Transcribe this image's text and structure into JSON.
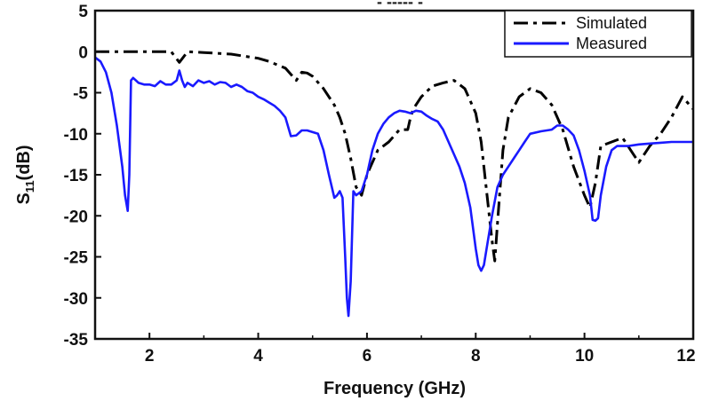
{
  "chart_data": {
    "type": "line",
    "title": "",
    "top_text_fragment": "- ----- -",
    "xlabel": "Frequency (GHz)",
    "ylabel": {
      "main": "S",
      "subscript": "11",
      "suffix": "(dB)"
    },
    "xlim": [
      1,
      12
    ],
    "ylim": [
      -35,
      5
    ],
    "x_ticks": [
      {
        "value": 2,
        "label": "2"
      },
      {
        "value": 4,
        "label": "4"
      },
      {
        "value": 6,
        "label": "6"
      },
      {
        "value": 8,
        "label": "8"
      },
      {
        "value": 10,
        "label": "10"
      },
      {
        "value": 12,
        "label": "12"
      }
    ],
    "y_ticks": [
      {
        "value": 5,
        "label": "5"
      },
      {
        "value": 0,
        "label": "0"
      },
      {
        "value": -5,
        "label": "-5"
      },
      {
        "value": -10,
        "label": "-10"
      },
      {
        "value": -15,
        "label": "-15"
      },
      {
        "value": -20,
        "label": "-20"
      },
      {
        "value": -25,
        "label": "-25"
      },
      {
        "value": -30,
        "label": "-30"
      },
      {
        "value": -35,
        "label": "-35"
      }
    ],
    "grid": false,
    "legend_position": "top-right",
    "series": [
      {
        "name": "Simulated",
        "color": "#000000",
        "style": "dash-dot",
        "x": [
          1.0,
          2.0,
          2.4,
          2.55,
          2.7,
          3.0,
          3.5,
          4.0,
          4.2,
          4.5,
          4.7,
          4.8,
          4.9,
          5.0,
          5.2,
          5.4,
          5.5,
          5.6,
          5.7,
          5.8,
          5.9,
          6.0,
          6.2,
          6.4,
          6.6,
          6.75,
          6.8,
          6.85,
          7.0,
          7.2,
          7.4,
          7.6,
          7.8,
          8.0,
          8.1,
          8.2,
          8.3,
          8.35,
          8.4,
          8.5,
          8.6,
          8.8,
          9.0,
          9.2,
          9.4,
          9.6,
          9.8,
          10.0,
          10.1,
          10.2,
          10.3,
          10.5,
          10.7,
          10.9,
          11.0,
          11.2,
          11.4,
          11.6,
          11.8,
          12.0
        ],
        "y": [
          0.0,
          0.0,
          0.0,
          -1.3,
          0.0,
          -0.1,
          -0.3,
          -0.8,
          -1.2,
          -2.0,
          -3.5,
          -2.5,
          -2.6,
          -3.0,
          -4.5,
          -6.5,
          -8.0,
          -10.0,
          -13.0,
          -16.5,
          -17.5,
          -15.0,
          -12.0,
          -11.0,
          -9.5,
          -9.5,
          -8.0,
          -7.0,
          -5.5,
          -4.2,
          -3.8,
          -3.5,
          -4.5,
          -7.5,
          -11.0,
          -17.0,
          -23.0,
          -25.5,
          -21.0,
          -12.0,
          -8.0,
          -5.5,
          -4.5,
          -5.0,
          -6.5,
          -9.5,
          -14.0,
          -17.5,
          -19.0,
          -16.0,
          -11.5,
          -11.0,
          -10.5,
          -12.5,
          -13.5,
          -11.5,
          -10.0,
          -8.0,
          -5.5,
          -7.0
        ]
      },
      {
        "name": "Measured",
        "color": "#1a1aff",
        "style": "solid",
        "x": [
          1.0,
          1.1,
          1.2,
          1.3,
          1.4,
          1.5,
          1.55,
          1.6,
          1.63,
          1.66,
          1.7,
          1.75,
          1.8,
          1.9,
          2.0,
          2.1,
          2.2,
          2.3,
          2.4,
          2.5,
          2.55,
          2.6,
          2.65,
          2.7,
          2.8,
          2.9,
          3.0,
          3.1,
          3.2,
          3.3,
          3.4,
          3.5,
          3.6,
          3.7,
          3.8,
          3.9,
          4.0,
          4.1,
          4.2,
          4.3,
          4.4,
          4.5,
          4.6,
          4.7,
          4.8,
          4.9,
          5.0,
          5.1,
          5.2,
          5.3,
          5.4,
          5.45,
          5.5,
          5.55,
          5.6,
          5.63,
          5.66,
          5.7,
          5.75,
          5.8,
          5.9,
          6.0,
          6.1,
          6.2,
          6.3,
          6.4,
          6.5,
          6.6,
          6.7,
          6.8,
          6.9,
          7.0,
          7.1,
          7.2,
          7.3,
          7.4,
          7.5,
          7.6,
          7.7,
          7.8,
          7.9,
          8.0,
          8.05,
          8.1,
          8.15,
          8.2,
          8.3,
          8.4,
          8.5,
          8.6,
          8.7,
          8.8,
          8.9,
          9.0,
          9.2,
          9.4,
          9.5,
          9.6,
          9.7,
          9.8,
          9.9,
          10.0,
          10.1,
          10.15,
          10.2,
          10.25,
          10.3,
          10.4,
          10.5,
          10.6,
          10.8,
          11.0,
          11.2,
          11.4,
          11.6,
          11.8,
          12.0
        ],
        "y": [
          -0.7,
          -1.2,
          -2.5,
          -5.0,
          -9.0,
          -14.0,
          -17.5,
          -19.4,
          -15.0,
          -3.5,
          -3.2,
          -3.5,
          -3.8,
          -4.0,
          -4.0,
          -4.2,
          -3.6,
          -4.0,
          -4.0,
          -3.5,
          -2.3,
          -3.5,
          -4.3,
          -3.8,
          -4.2,
          -3.5,
          -3.8,
          -3.6,
          -4.0,
          -3.7,
          -3.8,
          -4.3,
          -4.0,
          -4.3,
          -4.8,
          -5.0,
          -5.5,
          -5.8,
          -6.2,
          -6.6,
          -7.2,
          -8.0,
          -10.3,
          -10.2,
          -9.6,
          -9.6,
          -9.8,
          -10.0,
          -12.0,
          -15.0,
          -17.8,
          -17.5,
          -17.0,
          -17.8,
          -25.0,
          -30.0,
          -32.2,
          -28.0,
          -17.0,
          -17.5,
          -17.0,
          -15.0,
          -12.0,
          -10.0,
          -8.8,
          -8.0,
          -7.5,
          -7.2,
          -7.3,
          -7.5,
          -7.2,
          -7.3,
          -7.8,
          -8.2,
          -8.5,
          -9.5,
          -11.0,
          -12.5,
          -14.0,
          -16.0,
          -19.0,
          -24.0,
          -26.0,
          -26.7,
          -26.0,
          -24.0,
          -20.0,
          -16.5,
          -15.0,
          -14.0,
          -13.0,
          -12.0,
          -11.0,
          -10.0,
          -9.7,
          -9.5,
          -9.0,
          -9.0,
          -9.5,
          -10.2,
          -12.0,
          -14.5,
          -17.5,
          -20.5,
          -20.6,
          -20.3,
          -17.5,
          -14.0,
          -12.0,
          -11.5,
          -11.5,
          -11.3,
          -11.2,
          -11.1,
          -11.0,
          -11.0,
          -11.0
        ]
      }
    ]
  }
}
